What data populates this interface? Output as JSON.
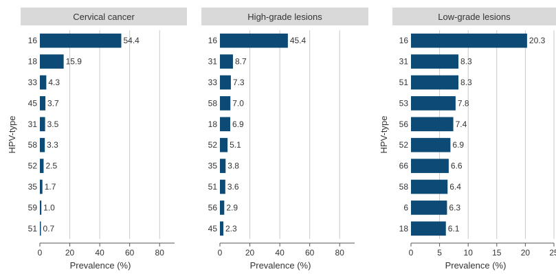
{
  "chart_data": [
    {
      "type": "bar",
      "orientation": "horizontal",
      "title": "Cervical cancer",
      "xlabel": "Prevalence (%)",
      "ylabel": "HPV-type",
      "categories": [
        "16",
        "18",
        "33",
        "45",
        "31",
        "58",
        "52",
        "35",
        "59",
        "51"
      ],
      "values": [
        54.4,
        15.9,
        4.3,
        3.7,
        3.5,
        3.3,
        2.5,
        1.7,
        1.0,
        0.7
      ],
      "value_labels": [
        "54.4",
        "15.9",
        "4.3",
        "3.7",
        "3.5",
        "3.3",
        "2.5",
        "1.7",
        "1.0",
        "0.7"
      ],
      "xlim": [
        0,
        90
      ],
      "xticks": [
        0,
        20,
        40,
        60,
        80
      ],
      "grid": true,
      "bar_color": "#0d4a75"
    },
    {
      "type": "bar",
      "orientation": "horizontal",
      "title": "High-grade lesions",
      "xlabel": "Prevalence (%)",
      "ylabel": "",
      "categories": [
        "16",
        "31",
        "33",
        "58",
        "18",
        "52",
        "35",
        "51",
        "56",
        "45"
      ],
      "values": [
        45.4,
        8.7,
        7.3,
        7.0,
        6.9,
        5.1,
        3.8,
        3.6,
        2.9,
        2.3
      ],
      "value_labels": [
        "45.4",
        "8.7",
        "7.3",
        "7.0",
        "6.9",
        "5.1",
        "3.8",
        "3.6",
        "2.9",
        "2.3"
      ],
      "xlim": [
        0,
        90
      ],
      "xticks": [
        0,
        20,
        40,
        60,
        80
      ],
      "grid": true,
      "bar_color": "#0d4a75"
    },
    {
      "type": "bar",
      "orientation": "horizontal",
      "title": "Low-grade lesions",
      "xlabel": "Prevalence (%)",
      "ylabel": "HPV-type",
      "categories": [
        "16",
        "31",
        "51",
        "53",
        "56",
        "52",
        "66",
        "58",
        "6",
        "18"
      ],
      "values": [
        20.3,
        8.3,
        8.3,
        7.8,
        7.4,
        6.9,
        6.6,
        6.4,
        6.3,
        6.1
      ],
      "value_labels": [
        "20.3",
        "8.3",
        "8.3",
        "7.8",
        "7.4",
        "6.9",
        "6.6",
        "6.4",
        "6.3",
        "6.1"
      ],
      "xlim": [
        0,
        25
      ],
      "xticks": [
        0,
        5,
        10,
        15,
        20,
        25
      ],
      "grid": true,
      "bar_color": "#0d4a75"
    }
  ],
  "colors": {
    "bar": "#0d4a75",
    "title_strip": "#d9d9d9",
    "grid": "#c8c8c8",
    "text": "#333333"
  }
}
